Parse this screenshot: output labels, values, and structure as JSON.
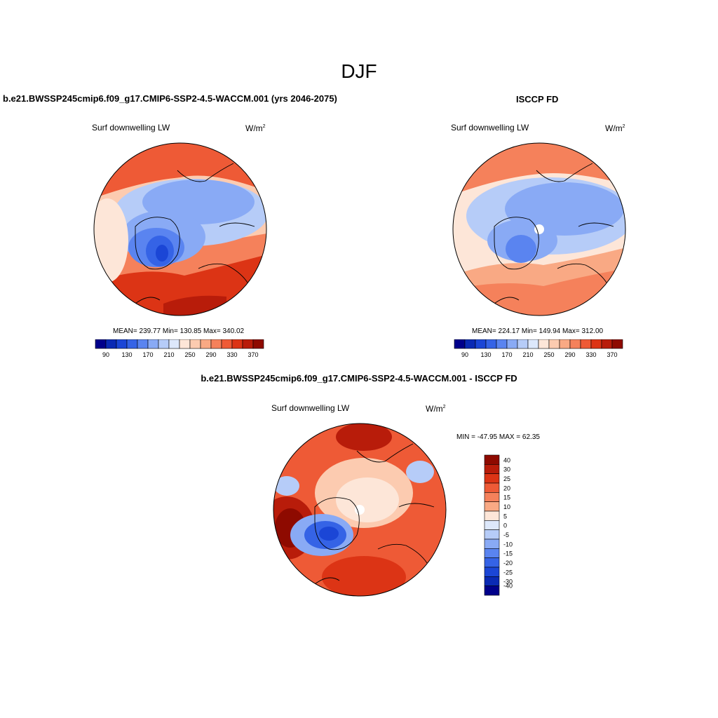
{
  "title": "DJF",
  "panels": [
    {
      "title": "b.e21.BWSSP245cmip6.f09_g17.CMIP6-SSP2-4.5-WACCM.001 (yrs 2046-2075)",
      "variable_label": "Surf downwelling LW",
      "units_base": "W/m",
      "units_exp": "2",
      "stats": "MEAN= 239.77  Min= 130.85  Max= 340.02"
    },
    {
      "title": "ISCCP FD",
      "variable_label": "Surf downwelling LW",
      "units_base": "W/m",
      "units_exp": "2",
      "stats": "MEAN= 224.17  Min= 149.94  Max= 312.00"
    },
    {
      "title": "b.e21.BWSSP245cmip6.f09_g17.CMIP6-SSP2-4.5-WACCM.001 - ISCCP FD",
      "variable_label": "Surf downwelling LW",
      "units_base": "W/m",
      "units_exp": "2",
      "stats": "MIN = -47.95 MAX =  62.35"
    }
  ],
  "colorbar_abs": {
    "colors": [
      "#00008b",
      "#0a2ab4",
      "#1b46d6",
      "#3563e6",
      "#5a84f0",
      "#89aaf5",
      "#b6ccf8",
      "#dde8fb",
      "#fde6d8",
      "#fccbb0",
      "#f9a984",
      "#f5815b",
      "#ee5a36",
      "#dc3415",
      "#b81c0a",
      "#8e0a00"
    ],
    "tick_labels": [
      "90",
      "130",
      "170",
      "210",
      "250",
      "290",
      "330",
      "370"
    ]
  },
  "colorbar_diff": {
    "colors": [
      "#8e0a00",
      "#b81c0a",
      "#dc3415",
      "#ee5a36",
      "#f5815b",
      "#f9a984",
      "#fde6d8",
      "#dde8fb",
      "#b6ccf8",
      "#89aaf5",
      "#5a84f0",
      "#3563e6",
      "#1b46d6",
      "#0a2ab4",
      "#00008b"
    ],
    "tick_labels": [
      "40",
      "30",
      "25",
      "20",
      "15",
      "10",
      "5",
      "0",
      "-5",
      "-10",
      "-15",
      "-20",
      "-25",
      "-30",
      "-40"
    ]
  }
}
